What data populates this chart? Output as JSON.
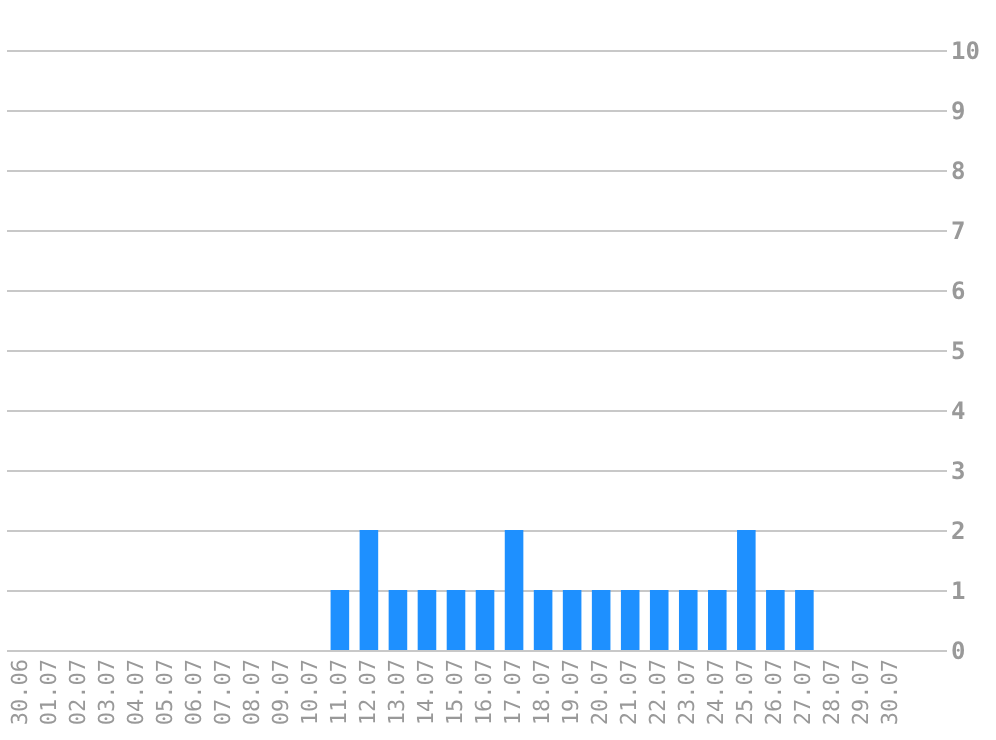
{
  "chart_data": {
    "type": "bar",
    "categories": [
      "30.06",
      "01.07",
      "02.07",
      "03.07",
      "04.07",
      "05.07",
      "06.07",
      "07.07",
      "08.07",
      "09.07",
      "10.07",
      "11.07",
      "12.07",
      "13.07",
      "14.07",
      "15.07",
      "16.07",
      "17.07",
      "18.07",
      "19.07",
      "20.07",
      "21.07",
      "22.07",
      "23.07",
      "24.07",
      "25.07",
      "26.07",
      "27.07",
      "28.07",
      "29.07",
      "30.07"
    ],
    "values": [
      0,
      0,
      0,
      0,
      0,
      0,
      0,
      0,
      0,
      0,
      0,
      1,
      2,
      1,
      1,
      1,
      1,
      2,
      1,
      1,
      1,
      1,
      1,
      1,
      1,
      2,
      1,
      1,
      0,
      0,
      0
    ],
    "color": "#1e90ff",
    "ylim": [
      0,
      10
    ],
    "yticks": [
      0,
      1,
      2,
      3,
      4,
      5,
      6,
      7,
      8,
      9,
      10
    ],
    "grid": "y"
  }
}
